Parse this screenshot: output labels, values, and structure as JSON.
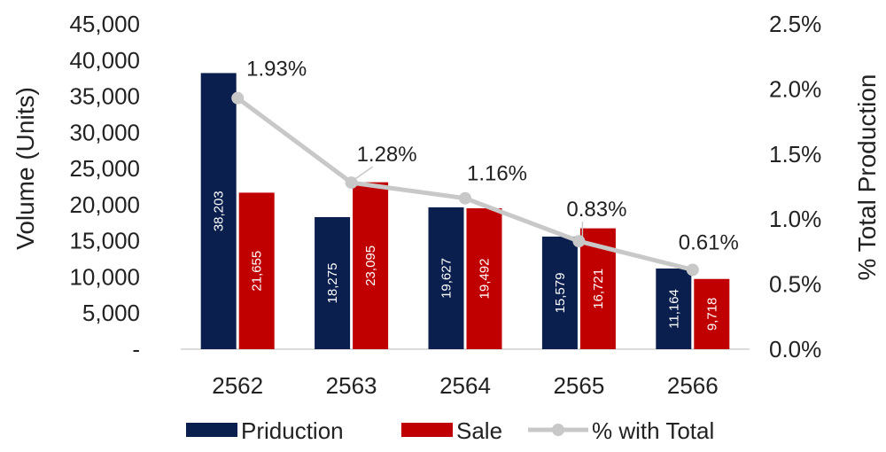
{
  "chart_data": {
    "type": "bar",
    "categories": [
      "2562",
      "2563",
      "2564",
      "2565",
      "2566"
    ],
    "series": [
      {
        "name": "Priduction",
        "kind": "bar",
        "axis": "left",
        "color": "#0a1f4e",
        "values": [
          38203,
          18275,
          19627,
          15579,
          11164
        ],
        "labels": [
          "38,203",
          "18,275",
          "19,627",
          "15,579",
          "11,164"
        ]
      },
      {
        "name": "Sale",
        "kind": "bar",
        "axis": "left",
        "color": "#c00000",
        "values": [
          21655,
          23095,
          19492,
          16721,
          9718
        ],
        "labels": [
          "21,655",
          "23,095",
          "19,492",
          "16,721",
          "9,718"
        ]
      },
      {
        "name": "% with Total",
        "kind": "line",
        "axis": "right",
        "color": "#c8c8c8",
        "values": [
          1.93,
          1.28,
          1.16,
          0.83,
          0.61
        ],
        "labels": [
          "1.93%",
          "1.28%",
          "1.16%",
          "0.83%",
          "0.61%"
        ]
      }
    ],
    "ylabel": "Volume (Units)",
    "y2label": "% Total Production",
    "ylim": [
      0,
      45000
    ],
    "y2lim": [
      0,
      2.5
    ],
    "yticks": [
      "-",
      "5,000",
      "10,000",
      "15,000",
      "20,000",
      "25,000",
      "30,000",
      "35,000",
      "40,000",
      "45,000"
    ],
    "y2ticks": [
      "0.0%",
      "0.5%",
      "1.0%",
      "1.5%",
      "2.0%",
      "2.5%"
    ],
    "grid": false,
    "legend": "bottom-center"
  }
}
